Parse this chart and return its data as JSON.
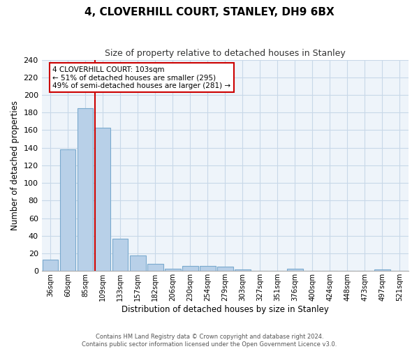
{
  "title": "4, CLOVERHILL COURT, STANLEY, DH9 6BX",
  "subtitle": "Size of property relative to detached houses in Stanley",
  "xlabel": "Distribution of detached houses by size in Stanley",
  "ylabel": "Number of detached properties",
  "bar_labels": [
    "36sqm",
    "60sqm",
    "85sqm",
    "109sqm",
    "133sqm",
    "157sqm",
    "182sqm",
    "206sqm",
    "230sqm",
    "254sqm",
    "279sqm",
    "303sqm",
    "327sqm",
    "351sqm",
    "376sqm",
    "400sqm",
    "424sqm",
    "448sqm",
    "473sqm",
    "497sqm",
    "521sqm"
  ],
  "bar_values": [
    13,
    138,
    185,
    163,
    37,
    18,
    8,
    3,
    6,
    6,
    5,
    2,
    0,
    0,
    3,
    0,
    0,
    0,
    0,
    2,
    0
  ],
  "bar_color": "#b8d0e8",
  "bar_edge_color": "#7aaace",
  "vline_color": "#cc0000",
  "annotation_title": "4 CLOVERHILL COURT: 103sqm",
  "annotation_line1": "← 51% of detached houses are smaller (295)",
  "annotation_line2": "49% of semi-detached houses are larger (281) →",
  "annotation_box_color": "#ffffff",
  "annotation_box_edge": "#cc0000",
  "ylim": [
    0,
    240
  ],
  "yticks": [
    0,
    20,
    40,
    60,
    80,
    100,
    120,
    140,
    160,
    180,
    200,
    220,
    240
  ],
  "footer1": "Contains HM Land Registry data © Crown copyright and database right 2024.",
  "footer2": "Contains public sector information licensed under the Open Government Licence v3.0.",
  "bg_color": "#ffffff",
  "grid_color": "#c8d8e8"
}
